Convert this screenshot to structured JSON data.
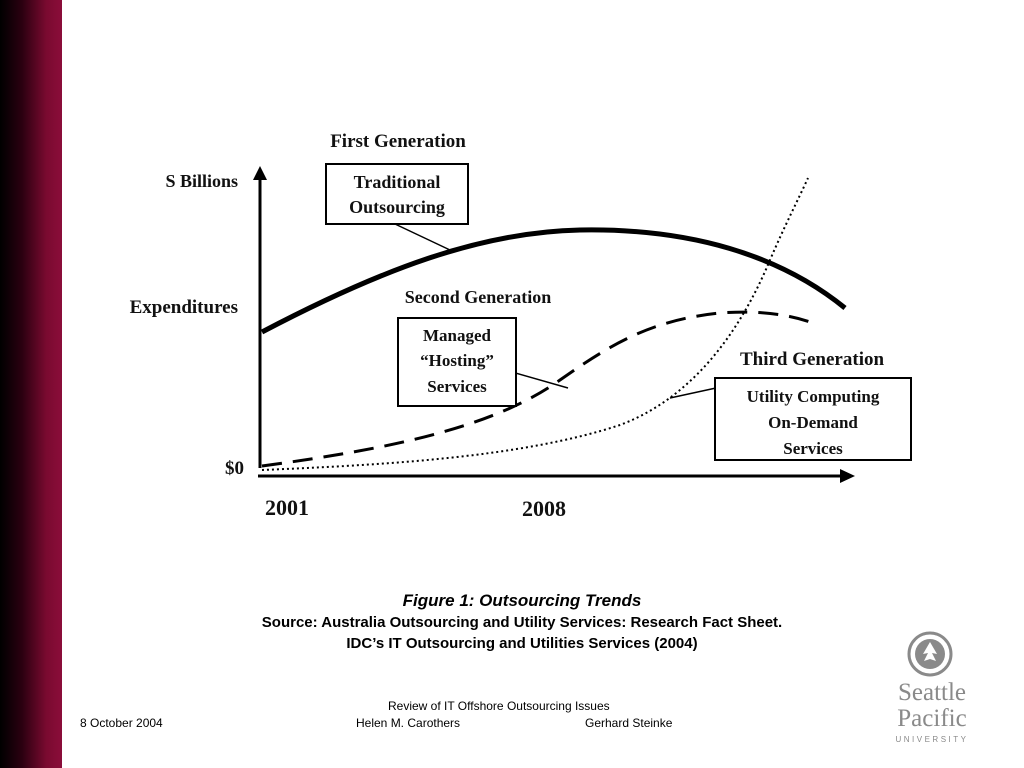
{
  "figure": {
    "header_first_generation": "First Generation",
    "y_axis_top": "S Billions",
    "y_axis_mid": "Expenditures",
    "y_axis_zero": "$0",
    "x_tick_1": "2001",
    "x_tick_2": "2008",
    "second_generation_label": "Second Generation",
    "third_generation_label": "Third Generation",
    "box_traditional": [
      "Traditional",
      "Outsourcing"
    ],
    "box_managed": [
      "Managed",
      "“Hosting”",
      "Services"
    ],
    "box_utility": [
      "Utility Computing",
      "On-Demand",
      "Services"
    ]
  },
  "caption": {
    "title": "Figure 1: Outsourcing Trends",
    "source_line1": "Source: Australia Outsourcing and Utility Services: Research Fact Sheet.",
    "source_line2": "IDC’s IT Outsourcing and Utilities Services (2004)"
  },
  "footer": {
    "date": "8 October 2004",
    "title": "Review of IT Offshore Outsourcing Issues",
    "author1": "Helen M. Carothers",
    "author2": "Gerhard Steinke"
  },
  "logo": {
    "line1": "Seattle",
    "line2": "Pacific",
    "line3": "UNIVERSITY"
  },
  "colors": {
    "sidebar": "#8b0d3a",
    "logo_gray": "#8a8a8a"
  }
}
